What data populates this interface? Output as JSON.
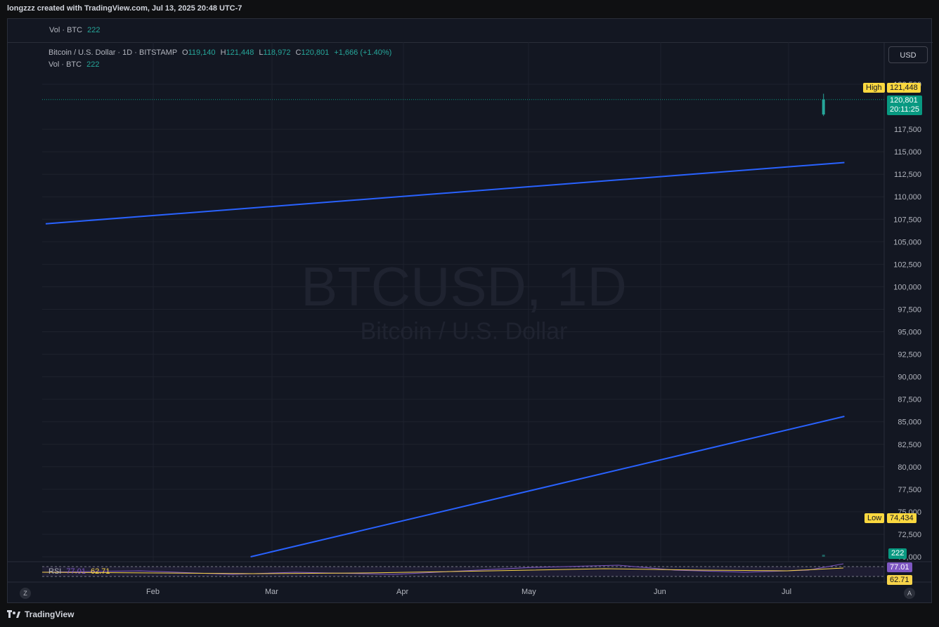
{
  "header": {
    "credit": "longzzz created with TradingView.com, Jul 13, 2025 20:48 UTC-7"
  },
  "vol_pane_top": {
    "name": "Vol · BTC",
    "value": "222"
  },
  "legend": {
    "symbol": "Bitcoin / U.S. Dollar · 1D · BITSTAMP",
    "o_label": "O",
    "o_value": "119,140",
    "h_label": "H",
    "h_value": "121,448",
    "l_label": "L",
    "l_value": "118,972",
    "c_label": "C",
    "c_value": "120,801",
    "change": "+1,666 (+1.40%)",
    "vol_name": "Vol · BTC",
    "vol_value": "222"
  },
  "watermark": {
    "ticker": "BTCUSD, 1D",
    "name": "Bitcoin / U.S. Dollar"
  },
  "currency_button": "USD",
  "price_axis": {
    "ticks": [
      "122,500",
      "117,500",
      "115,000",
      "112,500",
      "110,000",
      "107,500",
      "105,000",
      "102,500",
      "100,000",
      "97,500",
      "95,000",
      "92,500",
      "90,000",
      "87,500",
      "85,000",
      "82,500",
      "80,000",
      "77,500",
      "75,000",
      "72,500",
      "70,000"
    ],
    "high_label": "High",
    "high_value": "121,448",
    "last_price": "120,801",
    "countdown": "20:11:25",
    "low_label": "Low",
    "low_value": "74,434",
    "vol_tag": "222"
  },
  "rsi": {
    "name": "RSI",
    "value_rsi": "77.01",
    "value_ma": "62.71",
    "tag_rsi": "77.01",
    "tag_ma": "62.71"
  },
  "time_axis": [
    "Feb",
    "Mar",
    "Apr",
    "May",
    "Jun",
    "Jul"
  ],
  "footer": {
    "logo": "TradingView",
    "z_button": "Z",
    "a_button": "A"
  },
  "colors": {
    "up": "#26a69a",
    "down": "#ef5350",
    "trendline": "#2962ff",
    "background": "#131722"
  },
  "chart_data": {
    "type": "candlestick",
    "y_range": [
      70000,
      122500
    ],
    "trendlines": [
      {
        "from": [
          "2025-01-08",
          107000
        ],
        "to": [
          "2025-07-18",
          113800
        ]
      },
      {
        "from": [
          "2025-02-26",
          70000
        ],
        "to": [
          "2025-07-18",
          85600
        ]
      }
    ],
    "last_candle": {
      "date": "2025-07-13",
      "open": 119140,
      "high": 121448,
      "low": 118972,
      "close": 120801
    },
    "range_high": 121448,
    "range_low": 74434
  }
}
